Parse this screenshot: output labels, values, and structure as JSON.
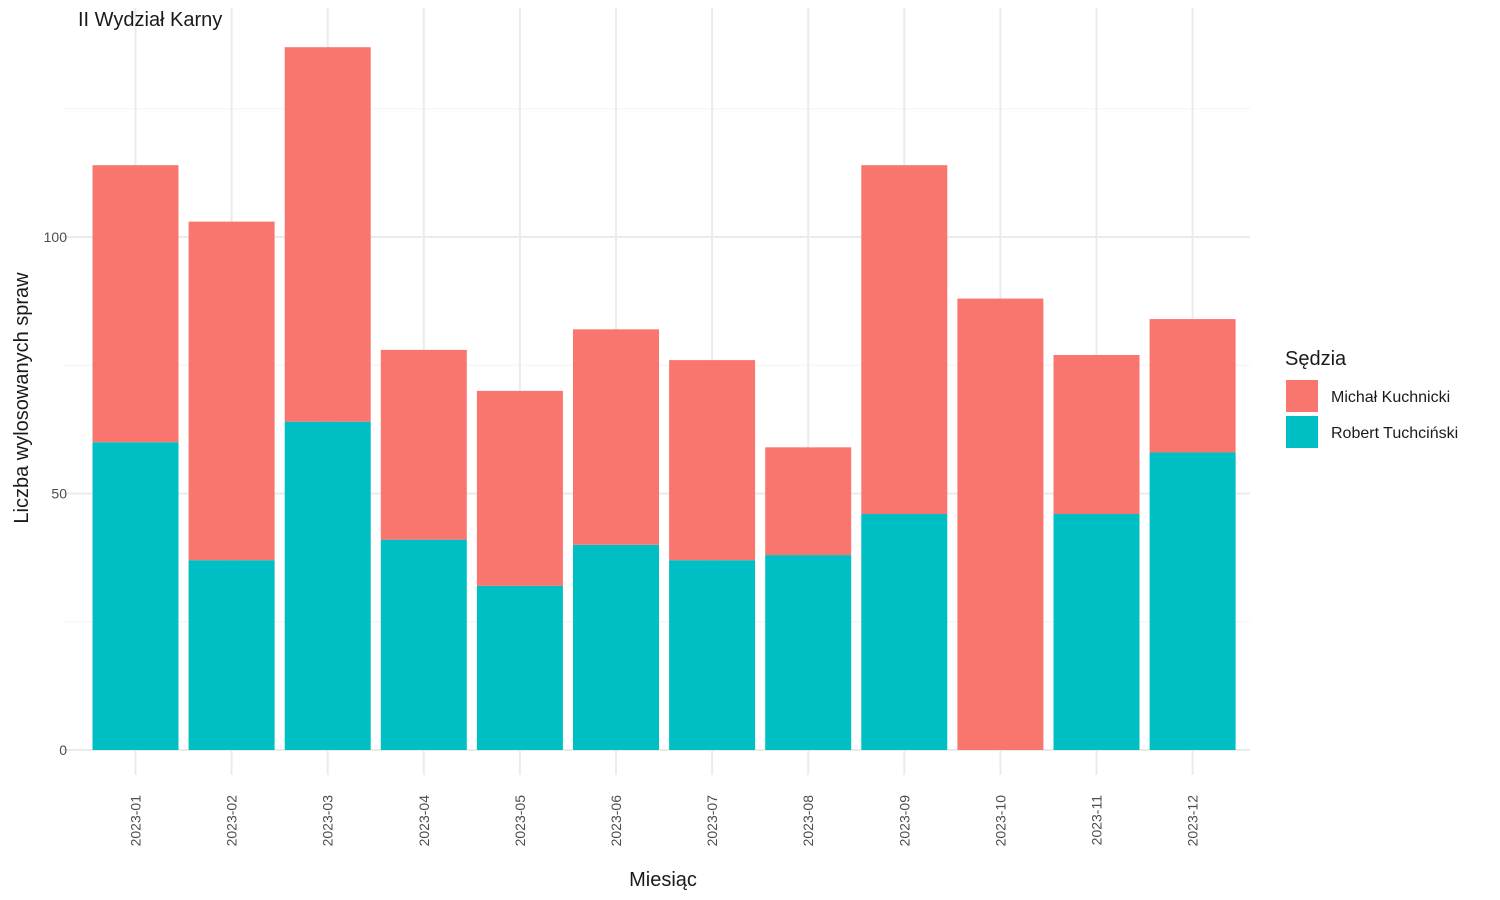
{
  "chart_data": {
    "type": "bar",
    "stacked": true,
    "title": "II Wydział Karny",
    "xlabel": "Miesiąc",
    "ylabel": "Liczba wylosowanych spraw",
    "ylim": [
      0,
      140
    ],
    "yticks": [
      0,
      50,
      100
    ],
    "grid": true,
    "legend_position": "right",
    "legend_title": "Sędzia",
    "categories": [
      "2023-01",
      "2023-02",
      "2023-03",
      "2023-04",
      "2023-05",
      "2023-06",
      "2023-07",
      "2023-08",
      "2023-09",
      "2023-10",
      "2023-11",
      "2023-12"
    ],
    "series": [
      {
        "name": "Michał Kuchnicki",
        "color": "#F8766D",
        "values": [
          54,
          66,
          73,
          37,
          38,
          42,
          39,
          21,
          68,
          88,
          31,
          26
        ]
      },
      {
        "name": "Robert Tuchciński",
        "color": "#00BFC4",
        "values": [
          60,
          37,
          64,
          41,
          32,
          40,
          37,
          38,
          46,
          0,
          46,
          58
        ]
      }
    ]
  }
}
